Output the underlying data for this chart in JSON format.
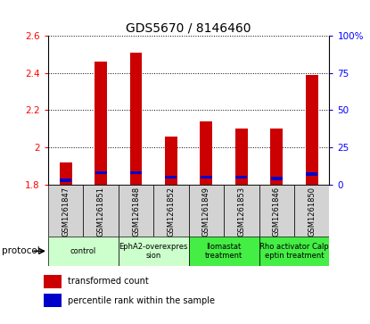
{
  "title": "GDS5670 / 8146460",
  "samples": [
    "GSM1261847",
    "GSM1261851",
    "GSM1261848",
    "GSM1261852",
    "GSM1261849",
    "GSM1261853",
    "GSM1261846",
    "GSM1261850"
  ],
  "red_values": [
    1.92,
    2.46,
    2.51,
    2.06,
    2.14,
    2.1,
    2.1,
    2.39
  ],
  "blue_pct": [
    3,
    8,
    8,
    5,
    5,
    5,
    4,
    7
  ],
  "ylim_left": [
    1.8,
    2.6
  ],
  "yticks_left": [
    1.8,
    2.0,
    2.2,
    2.4,
    2.6
  ],
  "ytick_labels_left": [
    "1.8",
    "2",
    "2.2",
    "2.4",
    "2.6"
  ],
  "yticks_right_pct": [
    0,
    25,
    50,
    75,
    100
  ],
  "ytick_labels_right": [
    "0",
    "25",
    "50",
    "75",
    "100%"
  ],
  "groups": [
    {
      "label": "control",
      "span": [
        0,
        1
      ],
      "color": "#ccffcc"
    },
    {
      "label": "EphA2-overexpres\nsion",
      "span": [
        2,
        3
      ],
      "color": "#ccffcc"
    },
    {
      "label": "Ilomastat\ntreatment",
      "span": [
        4,
        5
      ],
      "color": "#44ee44"
    },
    {
      "label": "Rho activator Calp\neptin treatment",
      "span": [
        6,
        7
      ],
      "color": "#44ee44"
    }
  ],
  "bar_color": "#cc0000",
  "blue_color": "#0000cc",
  "bar_width": 0.35,
  "background_color": "#ffffff",
  "base_value": 1.8,
  "legend_items": [
    {
      "color": "#cc0000",
      "label": "transformed count"
    },
    {
      "color": "#0000cc",
      "label": "percentile rank within the sample"
    }
  ],
  "protocol_label": "protocol"
}
